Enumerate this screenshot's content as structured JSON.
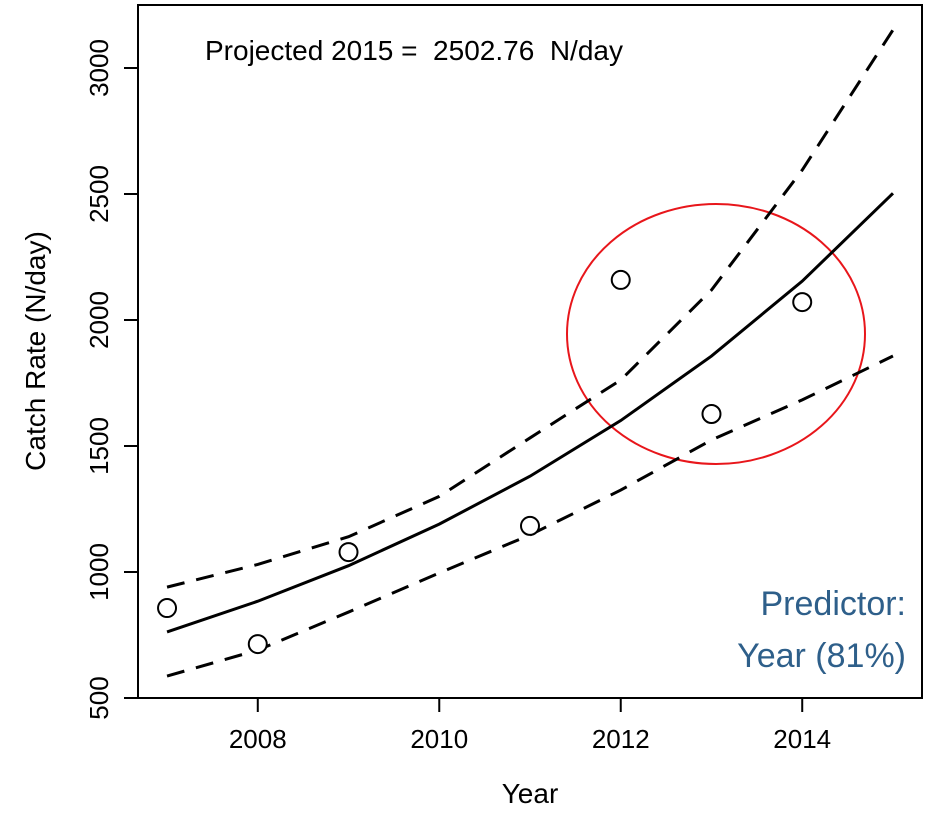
{
  "chart_data": {
    "type": "scatter",
    "x_label": "Year",
    "y_label": "Catch Rate (N/day)",
    "annotation": "Projected 2015 =  2502.76  N/day",
    "note_lines": [
      "Predictor:",
      "Year (81%)"
    ],
    "note_color": "#2e5f8a",
    "xlim": [
      2006.68,
      2015.32
    ],
    "ylim": [
      500,
      3250
    ],
    "xticks": [
      2008,
      2010,
      2012,
      2014
    ],
    "yticks": [
      500,
      1000,
      1500,
      2000,
      2500,
      3000
    ],
    "points": {
      "x": [
        2007,
        2008,
        2009,
        2011,
        2012,
        2013,
        2014
      ],
      "values": [
        857,
        714,
        1079,
        1183,
        2159,
        1627,
        2071
      ],
      "color": "#000000"
    },
    "line_x": [
      2007,
      2008,
      2009,
      2010,
      2011,
      2012,
      2013,
      2014,
      2015
    ],
    "lines": [
      {
        "values": [
          762,
          884,
          1025,
          1190,
          1380,
          1601,
          1857,
          2154,
          2502.76
        ],
        "dashed": false,
        "color": "#000000"
      },
      {
        "values": [
          940,
          1030,
          1140,
          1300,
          1532,
          1762,
          2119,
          2595,
          3151
        ],
        "dashed": true,
        "color": "#000000"
      },
      {
        "values": [
          587,
          690,
          841,
          996,
          1147,
          1325,
          1524,
          1683,
          1857
        ],
        "dashed": true,
        "color": "#000000"
      }
    ]
  }
}
